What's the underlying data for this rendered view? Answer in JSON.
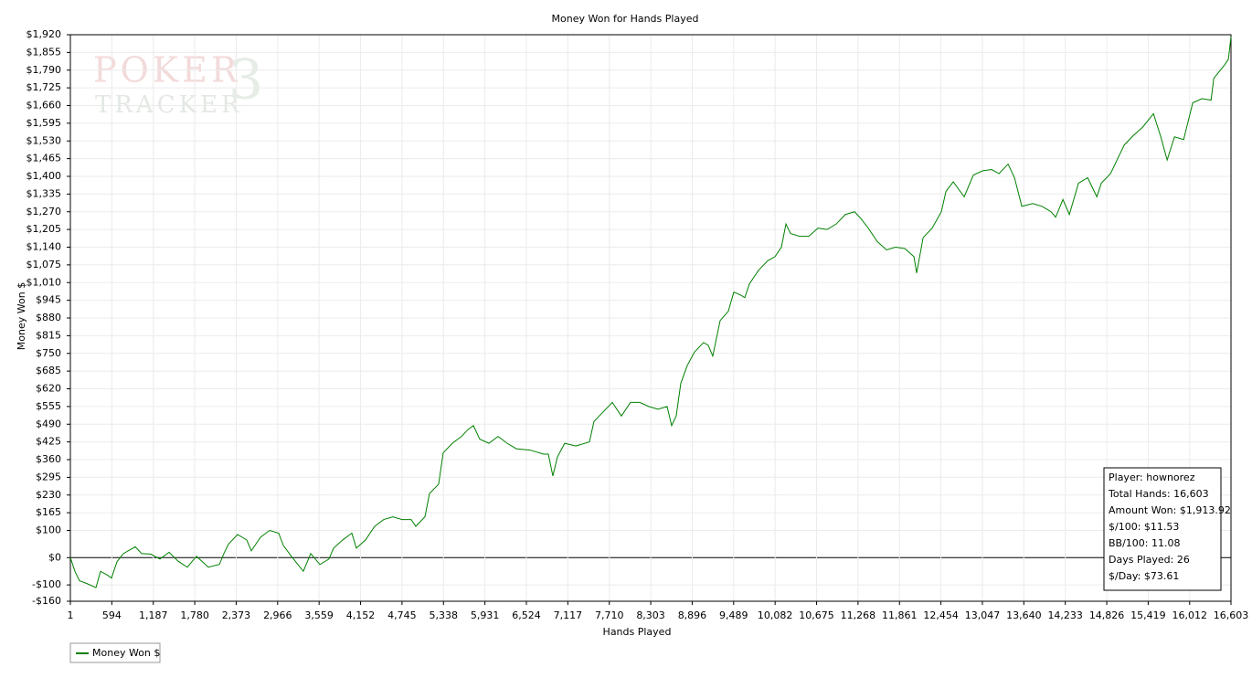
{
  "chart_data": {
    "type": "line",
    "title": "Money Won for Hands Played",
    "x_label": "Hands Played",
    "y_label": "Money Won $",
    "watermark": [
      "POKER",
      "TRACKER",
      "3"
    ],
    "info_box": [
      "Player: hownorez",
      "Total Hands: 16,603",
      "Amount Won: $1,913.92",
      "$/100: $11.53",
      "BB/100: 11.08",
      "Days Played: 26",
      "$/Day: $73.61"
    ],
    "grid": true,
    "legend": "bottom-left",
    "xlim": [
      1,
      16603
    ],
    "ylim": [
      -160,
      1920
    ],
    "xticks": [
      1,
      594,
      {
        "value": 1187,
        "label": "1,187"
      },
      {
        "value": 1780,
        "label": "1,780"
      },
      {
        "value": 2373,
        "label": "2,373"
      },
      {
        "value": 2966,
        "label": "2,966"
      },
      {
        "value": 3559,
        "label": "3,559"
      },
      {
        "value": 4152,
        "label": "4,152"
      },
      {
        "value": 4745,
        "label": "4,745"
      },
      {
        "value": 5338,
        "label": "5,338"
      },
      {
        "value": 5931,
        "label": "5,931"
      },
      {
        "value": 6524,
        "label": "6,524"
      },
      {
        "value": 7117,
        "label": "7,117"
      },
      {
        "value": 7710,
        "label": "7,710"
      },
      {
        "value": 8303,
        "label": "8,303"
      },
      {
        "value": 8896,
        "label": "8,896"
      },
      {
        "value": 9489,
        "label": "9,489"
      },
      {
        "value": 10082,
        "label": "10,082"
      },
      {
        "value": 10675,
        "label": "10,675"
      },
      {
        "value": 11268,
        "label": "11,268"
      },
      {
        "value": 11861,
        "label": "11,861"
      },
      {
        "value": 12454,
        "label": "12,454"
      },
      {
        "value": 13047,
        "label": "13,047"
      },
      {
        "value": 13640,
        "label": "13,640"
      },
      {
        "value": 14233,
        "label": "14,233"
      },
      {
        "value": 14826,
        "label": "14,826"
      },
      {
        "value": 15419,
        "label": "15,419"
      },
      {
        "value": 16012,
        "label": "16,012"
      },
      {
        "value": 16603,
        "label": "16,603"
      }
    ],
    "yticks": [
      {
        "value": 1920,
        "label": "$1,920"
      },
      {
        "value": 1855,
        "label": "$1,855"
      },
      {
        "value": 1790,
        "label": "$1,790"
      },
      {
        "value": 1725,
        "label": "$1,725"
      },
      {
        "value": 1660,
        "label": "$1,660"
      },
      {
        "value": 1595,
        "label": "$1,595"
      },
      {
        "value": 1530,
        "label": "$1,530"
      },
      {
        "value": 1465,
        "label": "$1,465"
      },
      {
        "value": 1400,
        "label": "$1,400"
      },
      {
        "value": 1335,
        "label": "$1,335"
      },
      {
        "value": 1270,
        "label": "$1,270"
      },
      {
        "value": 1205,
        "label": "$1,205"
      },
      {
        "value": 1140,
        "label": "$1,140"
      },
      {
        "value": 1075,
        "label": "$1,075"
      },
      {
        "value": 1010,
        "label": "$1,010"
      },
      {
        "value": 945,
        "label": "$945"
      },
      {
        "value": 880,
        "label": "$880"
      },
      {
        "value": 815,
        "label": "$815"
      },
      {
        "value": 750,
        "label": "$750"
      },
      {
        "value": 685,
        "label": "$685"
      },
      {
        "value": 620,
        "label": "$620"
      },
      {
        "value": 555,
        "label": "$555"
      },
      {
        "value": 490,
        "label": "$490"
      },
      {
        "value": 425,
        "label": "$425"
      },
      {
        "value": 360,
        "label": "$360"
      },
      {
        "value": 295,
        "label": "$295"
      },
      {
        "value": 230,
        "label": "$230"
      },
      {
        "value": 165,
        "label": "$165"
      },
      {
        "value": 100,
        "label": "$100"
      },
      {
        "value": 0,
        "label": "$0"
      },
      {
        "value": -100,
        "label": "-$100"
      },
      {
        "value": -160,
        "label": "-$160"
      }
    ],
    "x": [
      1,
      66,
      132,
      236,
      367,
      432,
      537,
      589,
      668,
      759,
      929,
      1021,
      1151,
      1282,
      1413,
      1543,
      1674,
      1805,
      1975,
      2132,
      2197,
      2263,
      2393,
      2524,
      2589,
      2720,
      2851,
      2981,
      3047,
      3177,
      3334,
      3439,
      3570,
      3700,
      3766,
      3896,
      4027,
      4092,
      4223,
      4354,
      4484,
      4615,
      4746,
      4876,
      4942,
      5073,
      5138,
      5269,
      5334,
      5465,
      5596,
      5687,
      5766,
      5857,
      5988,
      6119,
      6249,
      6380,
      6576,
      6772,
      6838,
      6903,
      6968,
      7073,
      7230,
      7426,
      7491,
      7622,
      7753,
      7883,
      8014,
      8145,
      8275,
      8406,
      8537,
      8602,
      8667,
      8733,
      8824,
      8929,
      9059,
      9125,
      9190,
      9295,
      9413,
      9491,
      9583,
      9648,
      9714,
      9845,
      9975,
      10080,
      10172,
      10237,
      10303,
      10433,
      10564,
      10695,
      10826,
      10956,
      11087,
      11218,
      11309,
      11414,
      11545,
      11676,
      11806,
      11937,
      12068,
      12107,
      12199,
      12329,
      12460,
      12526,
      12630,
      12787,
      12918,
      13049,
      13179,
      13284,
      13415,
      13506,
      13611,
      13768,
      13899,
      14029,
      14095,
      14199,
      14291,
      14422,
      14553,
      14684,
      14749,
      14880,
      15076,
      15207,
      15337,
      15494,
      15599,
      15690,
      15795,
      15926,
      16056,
      16187,
      16318,
      16357,
      16514,
      16566,
      16603
    ],
    "series": [
      {
        "name": "Money Won $",
        "color": "#008000",
        "values": [
          0,
          -50,
          -85,
          -95,
          -110,
          -50,
          -65,
          -75,
          -15,
          15,
          40,
          15,
          13,
          -5,
          20,
          -13,
          -35,
          5,
          -35,
          -25,
          15,
          50,
          85,
          65,
          25,
          75,
          100,
          90,
          45,
          0,
          -50,
          15,
          -25,
          -5,
          35,
          65,
          90,
          35,
          65,
          115,
          140,
          150,
          140,
          140,
          115,
          150,
          235,
          270,
          385,
          420,
          445,
          470,
          485,
          435,
          420,
          445,
          420,
          400,
          395,
          380,
          380,
          300,
          370,
          420,
          410,
          425,
          500,
          535,
          570,
          520,
          570,
          570,
          555,
          545,
          555,
          485,
          520,
          640,
          705,
          755,
          790,
          780,
          740,
          870,
          905,
          975,
          965,
          955,
          1005,
          1055,
          1090,
          1105,
          1140,
          1225,
          1190,
          1180,
          1180,
          1210,
          1205,
          1225,
          1260,
          1270,
          1245,
          1210,
          1160,
          1130,
          1140,
          1135,
          1105,
          1045,
          1175,
          1210,
          1270,
          1345,
          1380,
          1325,
          1405,
          1420,
          1425,
          1410,
          1445,
          1395,
          1290,
          1300,
          1290,
          1270,
          1250,
          1315,
          1260,
          1375,
          1395,
          1325,
          1375,
          1410,
          1515,
          1550,
          1580,
          1630,
          1545,
          1460,
          1545,
          1535,
          1670,
          1685,
          1680,
          1760,
          1810,
          1830,
          1913
        ]
      }
    ]
  }
}
